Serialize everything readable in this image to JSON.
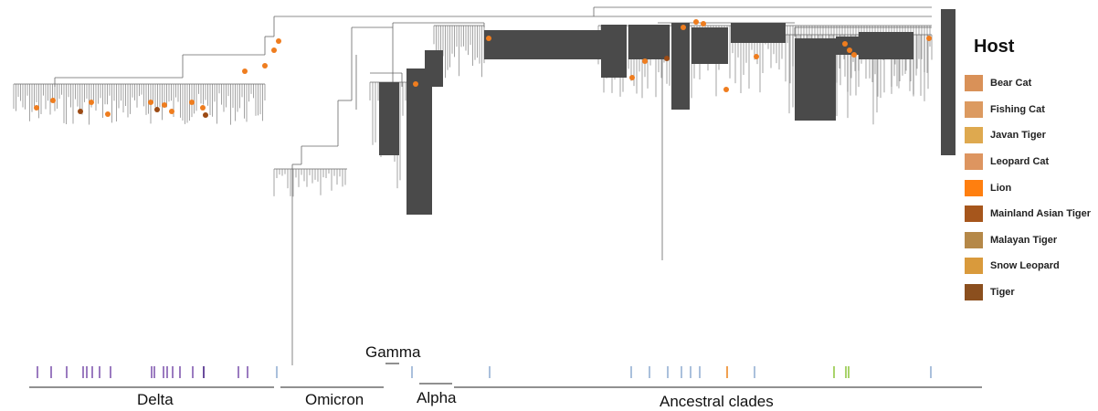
{
  "legend": {
    "title": "Host",
    "items": [
      {
        "label": "Bear Cat",
        "color": "#d99158"
      },
      {
        "label": "Fishing Cat",
        "color": "#dc9a60"
      },
      {
        "label": "Javan Tiger",
        "color": "#dea94f"
      },
      {
        "label": "Leopard Cat",
        "color": "#dd9560"
      },
      {
        "label": "Lion",
        "color": "#ff7f0f"
      },
      {
        "label": "Mainland Asian Tiger",
        "color": "#a6561c"
      },
      {
        "label": "Malayan Tiger",
        "color": "#b58848"
      },
      {
        "label": "Snow Leopard",
        "color": "#d99a3c"
      },
      {
        "label": "Tiger",
        "color": "#8b4f1e"
      }
    ]
  },
  "clades": {
    "delta": "Delta",
    "omicron": "Omicron",
    "gamma": "Gamma",
    "alpha": "Alpha",
    "ancestral": "Ancestral clades"
  },
  "colors": {
    "branch": "#666666",
    "branch_dark": "#4a4a4a",
    "tip_orange": "#ef7d1f",
    "tip_brown": "#9b4a14",
    "purple_bar": "#9b7bc0",
    "blue_bar": "#aac0dc",
    "green_bar": "#a9d36b",
    "orange_bar": "#f0a050"
  }
}
